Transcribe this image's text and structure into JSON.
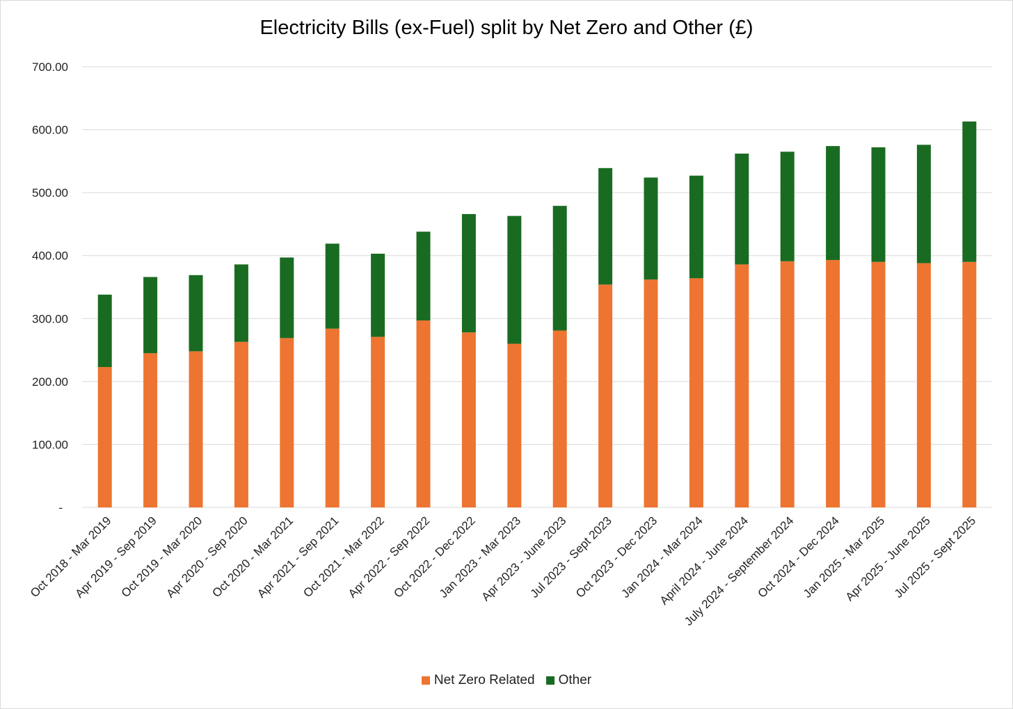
{
  "chart_data": {
    "type": "bar",
    "stacked": true,
    "title": "Electricity Bills (ex-Fuel) split by Net Zero and Other (£)",
    "xlabel": "",
    "ylabel": "",
    "ylim": [
      0,
      700
    ],
    "yticks": [
      0,
      100,
      200,
      300,
      400,
      500,
      600,
      700
    ],
    "ytick_labels": [
      "-",
      "100.00",
      "200.00",
      "300.00",
      "400.00",
      "500.00",
      "600.00",
      "700.00"
    ],
    "grid": true,
    "legend_position": "bottom",
    "categories": [
      "Oct 2018 - Mar 2019",
      "Apr 2019 - Sep 2019",
      "Oct 2019 - Mar 2020",
      "Apr 2020 - Sep 2020",
      "Oct 2020 - Mar 2021",
      "Apr 2021 - Sep 2021",
      "Oct 2021 - Mar 2022",
      "Apr 2022 - Sep 2022",
      "Oct 2022 - Dec 2022",
      "Jan 2023 - Mar 2023",
      "Apr 2023 - June 2023",
      "Jul 2023 - Sept 2023",
      "Oct 2023 - Dec 2023",
      "Jan 2024 - Mar 2024",
      "April 2024 - June 2024",
      "July 2024 - September 2024",
      "Oct 2024 - Dec 2024",
      "Jan 2025 - Mar 2025",
      "Apr 2025 - June 2025",
      "Jul 2025 - Sept 2025"
    ],
    "series": [
      {
        "name": "Net Zero Related",
        "color": "#ED7531",
        "values": [
          223,
          245,
          248,
          263,
          269,
          284,
          271,
          297,
          278,
          260,
          281,
          354,
          362,
          364,
          386,
          391,
          393,
          390,
          388,
          390
        ]
      },
      {
        "name": "Other",
        "color": "#1A6B22",
        "values": [
          115,
          121,
          121,
          123,
          128,
          135,
          132,
          141,
          188,
          203,
          198,
          185,
          162,
          163,
          176,
          174,
          181,
          182,
          188,
          223
        ]
      }
    ]
  }
}
